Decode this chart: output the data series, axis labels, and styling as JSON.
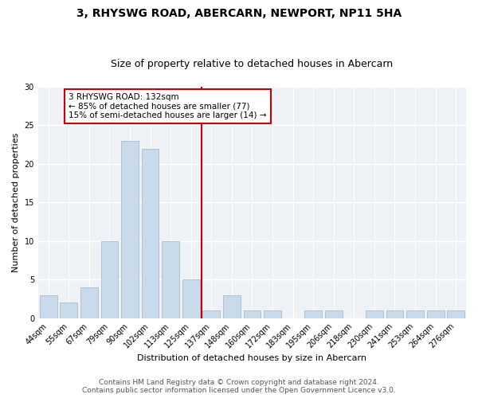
{
  "title": "3, RHYSWG ROAD, ABERCARN, NEWPORT, NP11 5HA",
  "subtitle": "Size of property relative to detached houses in Abercarn",
  "xlabel": "Distribution of detached houses by size in Abercarn",
  "ylabel": "Number of detached properties",
  "categories": [
    "44sqm",
    "55sqm",
    "67sqm",
    "79sqm",
    "90sqm",
    "102sqm",
    "113sqm",
    "125sqm",
    "137sqm",
    "148sqm",
    "160sqm",
    "172sqm",
    "183sqm",
    "195sqm",
    "206sqm",
    "218sqm",
    "230sqm",
    "241sqm",
    "253sqm",
    "264sqm",
    "276sqm"
  ],
  "values": [
    3,
    2,
    4,
    10,
    23,
    22,
    10,
    5,
    1,
    3,
    1,
    1,
    0,
    1,
    1,
    0,
    1,
    1,
    1,
    1,
    1
  ],
  "bar_color": "#c9daea",
  "bar_edge_color": "#aabccc",
  "vline_x": 7.5,
  "vline_color": "#cc0000",
  "annotation_text": "3 RHYSWG ROAD: 132sqm\n← 85% of detached houses are smaller (77)\n15% of semi-detached houses are larger (14) →",
  "annotation_box_facecolor": "#ffffff",
  "annotation_box_edge": "#cc0000",
  "ylim": [
    0,
    30
  ],
  "yticks": [
    0,
    5,
    10,
    15,
    20,
    25,
    30
  ],
  "footer1": "Contains HM Land Registry data © Crown copyright and database right 2024.",
  "footer2": "Contains public sector information licensed under the Open Government Licence v3.0.",
  "bg_color": "#eef2f7",
  "grid_color": "#ffffff",
  "fig_bg": "#ffffff",
  "title_fontsize": 10,
  "subtitle_fontsize": 9,
  "label_fontsize": 8,
  "tick_fontsize": 7,
  "annot_fontsize": 7.5,
  "footer_fontsize": 6.5
}
